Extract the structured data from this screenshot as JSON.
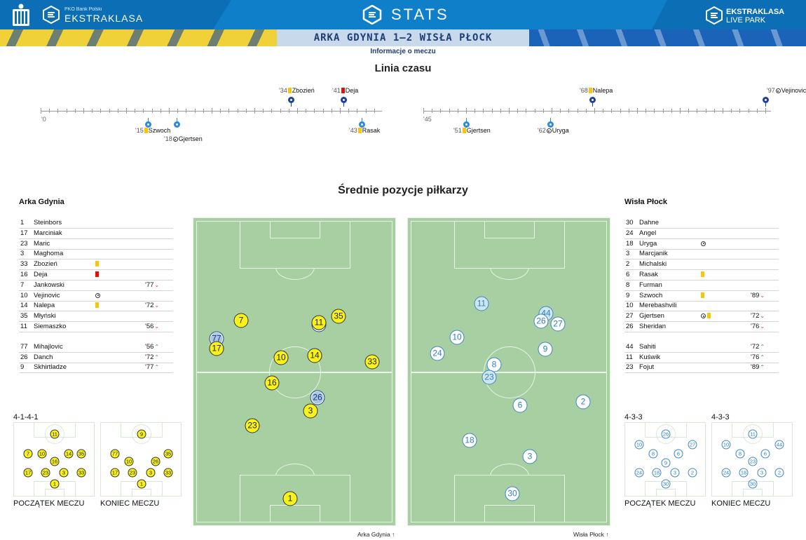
{
  "header": {
    "brand_small": "PKO Bank Polski",
    "brand": "EKSTRAKLASA",
    "stats": "STATS",
    "live_1": "EKSTRAKLASA",
    "live_2": "LIVE PARK",
    "score": "ARKA GDYNIA 1–2 WISŁA PŁOCK",
    "info_link": "Informacje o meczu"
  },
  "timeline": {
    "title": "Linia czasu",
    "first_half_start": "'0",
    "second_half_start": "'45",
    "events": [
      {
        "id": "e34",
        "min": "'34",
        "player": "Zbozień",
        "kind": "yellow",
        "team": "home"
      },
      {
        "id": "e41",
        "min": "'41",
        "player": "Deja",
        "kind": "red",
        "team": "home"
      },
      {
        "id": "e15",
        "min": "'15",
        "player": "Szwoch",
        "kind": "yellow",
        "team": "away"
      },
      {
        "id": "e18",
        "min": "'18",
        "player": "Gjertsen",
        "kind": "goal",
        "team": "away"
      },
      {
        "id": "e43",
        "min": "'43",
        "player": "Rasak",
        "kind": "yellow",
        "team": "away"
      },
      {
        "id": "e68",
        "min": "'68",
        "player": "Nalepa",
        "kind": "yellow",
        "team": "home"
      },
      {
        "id": "e97",
        "min": "'97",
        "player": "Vejinovic",
        "kind": "goal",
        "team": "home"
      },
      {
        "id": "e51",
        "min": "'51",
        "player": "Gjertsen",
        "kind": "yellow",
        "team": "away"
      },
      {
        "id": "e62",
        "min": "'62",
        "player": "Uryga",
        "kind": "goal",
        "team": "away"
      }
    ]
  },
  "positions_title": "Średnie pozycje piłkarzy",
  "home": {
    "name": "Arka Gdynia",
    "players": [
      {
        "num": "1",
        "name": "Steinbors",
        "icon": "",
        "sub": ""
      },
      {
        "num": "17",
        "name": "Marciniak",
        "icon": "",
        "sub": ""
      },
      {
        "num": "23",
        "name": "Maric",
        "icon": "",
        "sub": ""
      },
      {
        "num": "3",
        "name": "Maghoma",
        "icon": "",
        "sub": ""
      },
      {
        "num": "33",
        "name": "Zbozień",
        "icon": "yellow",
        "sub": ""
      },
      {
        "num": "16",
        "name": "Deja",
        "icon": "red",
        "sub": ""
      },
      {
        "num": "7",
        "name": "Jankowski",
        "icon": "",
        "sub": "'77"
      },
      {
        "num": "10",
        "name": "Vejinovic",
        "icon": "goal",
        "sub": ""
      },
      {
        "num": "14",
        "name": "Nalepa",
        "icon": "yellow",
        "sub": "'72"
      },
      {
        "num": "35",
        "name": "Młyński",
        "icon": "",
        "sub": ""
      },
      {
        "num": "11",
        "name": "Siemaszko",
        "icon": "",
        "sub": "'56"
      }
    ],
    "subs": [
      {
        "num": "77",
        "name": "Mihajlovic",
        "sub": "'56"
      },
      {
        "num": "26",
        "name": "Danch",
        "sub": "'72"
      },
      {
        "num": "9",
        "name": "Skhirtladze",
        "sub": "'77"
      }
    ],
    "formation_start": "4-1-4-1",
    "start_label": "POCZĄTEK MECZU",
    "end_label": "KONIEC MECZU",
    "footer": "Arka Gdynia"
  },
  "away": {
    "name": "Wisła Płock",
    "players": [
      {
        "num": "30",
        "name": "Dahne",
        "icon": "",
        "sub": ""
      },
      {
        "num": "24",
        "name": "Angel",
        "icon": "",
        "sub": ""
      },
      {
        "num": "18",
        "name": "Uryga",
        "icon": "goal",
        "sub": ""
      },
      {
        "num": "3",
        "name": "Marcjanik",
        "icon": "",
        "sub": ""
      },
      {
        "num": "2",
        "name": "Michalski",
        "icon": "",
        "sub": ""
      },
      {
        "num": "6",
        "name": "Rasak",
        "icon": "yellow",
        "sub": ""
      },
      {
        "num": "8",
        "name": "Furman",
        "icon": "",
        "sub": ""
      },
      {
        "num": "9",
        "name": "Szwoch",
        "icon": "yellow",
        "sub": "'89"
      },
      {
        "num": "10",
        "name": "Merebashvili",
        "icon": "",
        "sub": ""
      },
      {
        "num": "27",
        "name": "Gjertsen",
        "icon": "goal+yellow",
        "sub": "'72"
      },
      {
        "num": "26",
        "name": "Sheridan",
        "icon": "",
        "sub": "'76"
      }
    ],
    "subs": [
      {
        "num": "44",
        "name": "Sahiti",
        "sub": "'72"
      },
      {
        "num": "11",
        "name": "Kuświk",
        "sub": "'76"
      },
      {
        "num": "23",
        "name": "Fojut",
        "sub": "'89"
      }
    ],
    "formation_start": "4-3-3",
    "formation_end": "4-3-3",
    "start_label": "POCZĄTEK MECZU",
    "end_label": "KONIEC MECZU",
    "footer": "Wisła Płock"
  },
  "colors": {
    "header": "#0f7fc9",
    "home_dot": "#f8f21a",
    "away_dot": "#ffffff",
    "pitch": "#a7cfa2",
    "yellow_card": "#f6c60a",
    "red_card": "#e31010",
    "sub_out": "#e03030",
    "sub_in": "#22a04a"
  }
}
